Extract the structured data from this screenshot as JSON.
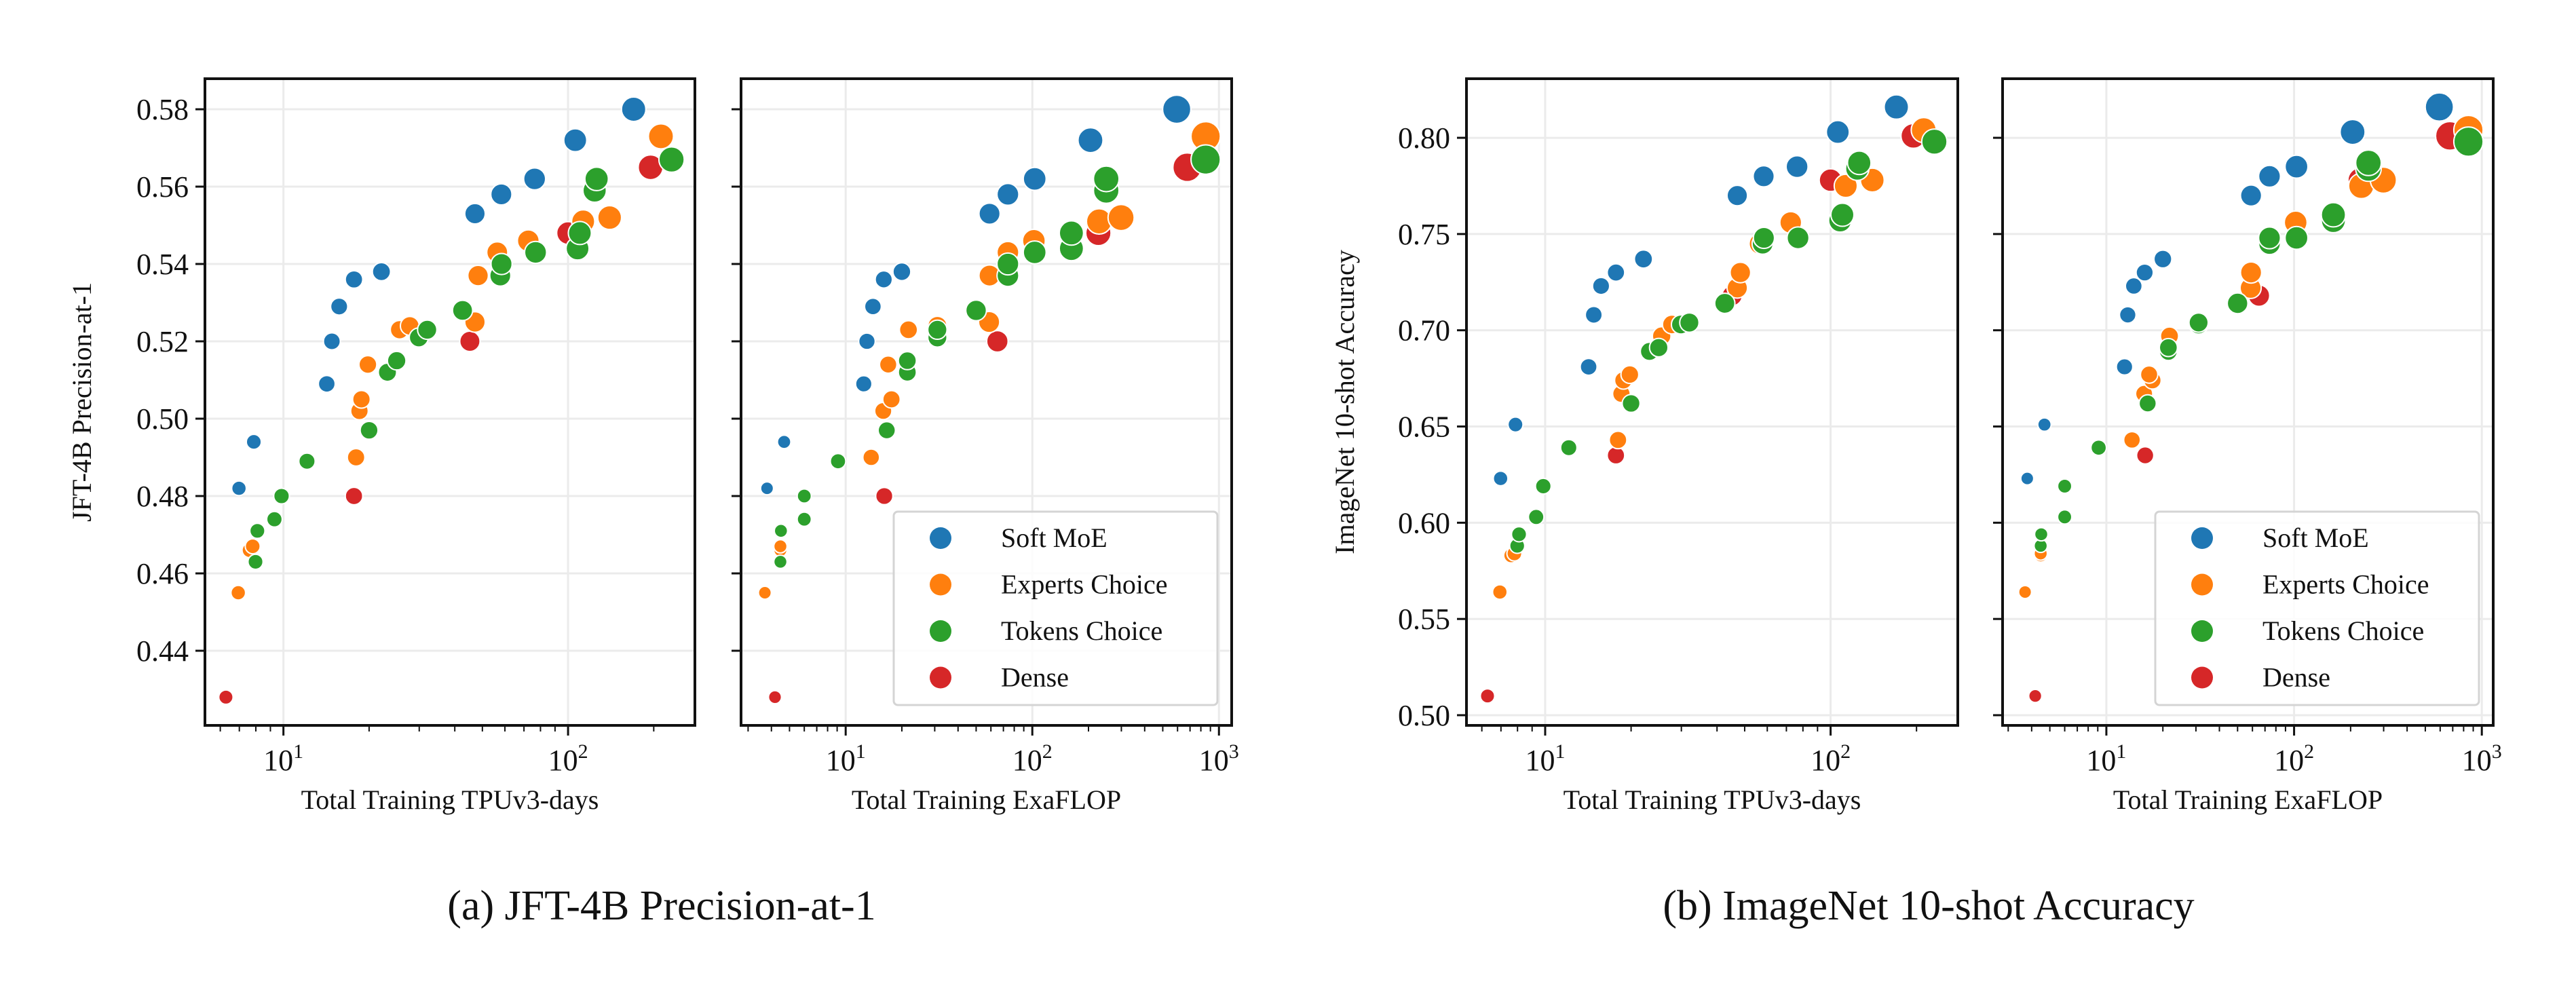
{
  "captions": {
    "a": "(a) JFT-4B Precision-at-1",
    "b": "(b) ImageNet 10-shot Accuracy"
  },
  "colors": {
    "Soft MoE": "#1f77b4",
    "Experts Choice": "#ff7f0e",
    "Tokens Choice": "#2ca02c",
    "Dense": "#d62728"
  },
  "chart_data": [
    {
      "type": "scatter",
      "xlabel": "Total Training TPUv3-days",
      "ylabel": "JFT-4B Precision-at-1",
      "xscale": "log",
      "xlim": [
        5.3,
        279
      ],
      "ylim": [
        0.4207,
        0.5879
      ],
      "xticks": [
        {
          "base": "10",
          "exp": "1",
          "value": 10
        },
        {
          "base": "10",
          "exp": "2",
          "value": 100
        }
      ],
      "yticks": [
        0.44,
        0.46,
        0.48,
        0.5,
        0.52,
        0.54,
        0.56,
        0.58
      ],
      "ytick_labels": [
        "0.44",
        "0.46",
        "0.48",
        "0.50",
        "0.52",
        "0.54",
        "0.56",
        "0.58"
      ],
      "grid": true,
      "legend": null,
      "series": [
        {
          "name": "Soft MoE",
          "x": [
            6.98,
            7.87,
            14.2,
            14.8,
            15.7,
            17.7,
            22.1,
            47.1,
            58.3,
            76.3,
            106,
            170
          ],
          "y": [
            0.482,
            0.494,
            0.509,
            0.52,
            0.529,
            0.536,
            0.538,
            0.553,
            0.558,
            0.562,
            0.572,
            0.58
          ]
        },
        {
          "name": "Experts Choice",
          "x": [
            6.94,
            7.6,
            7.8,
            18.0,
            18.5,
            18.8,
            19.8,
            25.6,
            27.8,
            47.1,
            48.3,
            56.4,
            72.5,
            113,
            140,
            212
          ],
          "y": [
            0.455,
            0.466,
            0.467,
            0.49,
            0.502,
            0.505,
            0.514,
            0.523,
            0.524,
            0.525,
            0.537,
            0.543,
            0.546,
            0.551,
            0.552,
            0.573
          ]
        },
        {
          "name": "Tokens Choice",
          "x": [
            7.98,
            8.1,
            9.3,
            9.85,
            12.1,
            20.0,
            23.2,
            25.0,
            29.9,
            32.0,
            42.6,
            57.8,
            58.4,
            76.9,
            108,
            110,
            124,
            126,
            231
          ],
          "y": [
            0.463,
            0.471,
            0.474,
            0.48,
            0.489,
            0.497,
            0.512,
            0.515,
            0.521,
            0.523,
            0.528,
            0.537,
            0.54,
            0.543,
            0.544,
            0.548,
            0.559,
            0.562,
            0.567
          ]
        },
        {
          "name": "Dense",
          "x": [
            6.28,
            17.7,
            45.2,
            100,
            195
          ],
          "y": [
            0.428,
            0.48,
            0.52,
            0.548,
            0.565
          ]
        }
      ]
    },
    {
      "type": "scatter",
      "xlabel": "Total Training ExaFLOP",
      "ylabel": "",
      "xscale": "log",
      "xlim": [
        2.75,
        1170
      ],
      "ylim": [
        0.4207,
        0.5879
      ],
      "xticks": [
        {
          "base": "10",
          "exp": "1",
          "value": 10
        },
        {
          "base": "10",
          "exp": "2",
          "value": 100
        },
        {
          "base": "10",
          "exp": "3",
          "value": 1000
        }
      ],
      "yticks": [
        0.44,
        0.46,
        0.48,
        0.5,
        0.52,
        0.54,
        0.56,
        0.58
      ],
      "grid": true,
      "legend": "lower-right",
      "series": [
        {
          "name": "Soft MoE",
          "x": [
            3.79,
            4.68,
            12.5,
            13.0,
            14.0,
            16.0,
            20.0,
            59,
            74,
            103,
            205,
            594
          ],
          "y": [
            0.482,
            0.494,
            0.509,
            0.52,
            0.529,
            0.536,
            0.538,
            0.553,
            0.558,
            0.562,
            0.572,
            0.58
          ]
        },
        {
          "name": "Experts Choice",
          "x": [
            3.69,
            4.47,
            4.47,
            13.7,
            15.9,
            17.6,
            16.9,
            21.7,
            31,
            58.7,
            59,
            74,
            102,
            228,
            299,
            849
          ],
          "y": [
            0.455,
            0.466,
            0.467,
            0.49,
            0.502,
            0.505,
            0.514,
            0.523,
            0.524,
            0.525,
            0.537,
            0.543,
            0.546,
            0.551,
            0.552,
            0.573
          ]
        },
        {
          "name": "Tokens Choice",
          "x": [
            4.47,
            4.5,
            6.0,
            6.0,
            9.1,
            16.6,
            21.4,
            21.4,
            31,
            31,
            50,
            74,
            74,
            103,
            162,
            162,
            249,
            249,
            849
          ],
          "y": [
            0.463,
            0.471,
            0.474,
            0.48,
            0.489,
            0.497,
            0.512,
            0.515,
            0.521,
            0.523,
            0.528,
            0.537,
            0.54,
            0.543,
            0.544,
            0.548,
            0.559,
            0.562,
            0.567
          ]
        },
        {
          "name": "Dense",
          "x": [
            4.18,
            16.1,
            65,
            226,
            676
          ],
          "y": [
            0.428,
            0.48,
            0.52,
            0.548,
            0.565
          ]
        }
      ]
    },
    {
      "type": "scatter",
      "xlabel": "Total Training TPUv3-days",
      "ylabel": "ImageNet 10-shot Accuracy",
      "xscale": "log",
      "xlim": [
        5.3,
        279
      ],
      "ylim": [
        0.4947,
        0.8307
      ],
      "xticks": [
        {
          "base": "10",
          "exp": "1",
          "value": 10
        },
        {
          "base": "10",
          "exp": "2",
          "value": 100
        }
      ],
      "yticks": [
        0.5,
        0.55,
        0.6,
        0.65,
        0.7,
        0.75,
        0.8
      ],
      "ytick_labels": [
        "0.50",
        "0.55",
        "0.60",
        "0.65",
        "0.70",
        "0.75",
        "0.80"
      ],
      "grid": true,
      "legend": null,
      "series": [
        {
          "name": "Soft MoE",
          "x": [
            6.98,
            7.87,
            14.2,
            14.8,
            15.7,
            17.7,
            22.1,
            47.1,
            58.3,
            76.3,
            106,
            170
          ],
          "y": [
            0.623,
            0.651,
            0.681,
            0.708,
            0.723,
            0.73,
            0.737,
            0.77,
            0.78,
            0.785,
            0.803,
            0.816
          ]
        },
        {
          "name": "Experts Choice",
          "x": [
            6.94,
            7.6,
            7.8,
            18.0,
            18.5,
            18.8,
            19.8,
            25.6,
            27.8,
            47.1,
            48.3,
            56.4,
            72.5,
            113,
            140,
            212
          ],
          "y": [
            0.564,
            0.583,
            0.584,
            0.643,
            0.667,
            0.674,
            0.677,
            0.697,
            0.703,
            0.722,
            0.73,
            0.745,
            0.756,
            0.775,
            0.778,
            0.804
          ]
        },
        {
          "name": "Tokens Choice",
          "x": [
            7.98,
            8.1,
            9.3,
            9.85,
            12.1,
            20.0,
            23.2,
            25.0,
            29.9,
            32.0,
            42.6,
            57.8,
            58.4,
            76.9,
            108,
            110,
            124,
            126,
            231
          ],
          "y": [
            0.588,
            0.594,
            0.603,
            0.619,
            0.639,
            0.662,
            0.689,
            0.691,
            0.703,
            0.704,
            0.714,
            0.745,
            0.748,
            0.748,
            0.757,
            0.76,
            0.784,
            0.787,
            0.798
          ]
        },
        {
          "name": "Dense",
          "x": [
            6.28,
            17.7,
            45.2,
            100,
            195
          ],
          "y": [
            0.51,
            0.635,
            0.718,
            0.778,
            0.801
          ]
        }
      ]
    },
    {
      "type": "scatter",
      "xlabel": "Total Training ExaFLOP",
      "ylabel": "",
      "xscale": "log",
      "xlim": [
        2.8,
        1150
      ],
      "ylim": [
        0.4947,
        0.8307
      ],
      "xticks": [
        {
          "base": "10",
          "exp": "1",
          "value": 10
        },
        {
          "base": "10",
          "exp": "2",
          "value": 100
        },
        {
          "base": "10",
          "exp": "3",
          "value": 1000
        }
      ],
      "yticks": [
        0.5,
        0.55,
        0.6,
        0.65,
        0.7,
        0.75,
        0.8
      ],
      "grid": true,
      "legend": "lower-right",
      "series": [
        {
          "name": "Soft MoE",
          "x": [
            3.79,
            4.68,
            12.5,
            13.0,
            14.0,
            16.0,
            20.0,
            59,
            74,
            103,
            205,
            594
          ],
          "y": [
            0.623,
            0.651,
            0.681,
            0.708,
            0.723,
            0.73,
            0.737,
            0.77,
            0.78,
            0.785,
            0.803,
            0.816
          ]
        },
        {
          "name": "Experts Choice",
          "x": [
            3.69,
            4.47,
            4.47,
            13.7,
            15.9,
            17.6,
            16.9,
            21.7,
            31,
            58.7,
            59,
            74,
            102,
            228,
            299,
            849
          ],
          "y": [
            0.564,
            0.583,
            0.584,
            0.643,
            0.667,
            0.674,
            0.677,
            0.697,
            0.703,
            0.722,
            0.73,
            0.745,
            0.756,
            0.775,
            0.778,
            0.804
          ]
        },
        {
          "name": "Tokens Choice",
          "x": [
            4.47,
            4.5,
            6.0,
            6.0,
            9.1,
            16.6,
            21.4,
            21.4,
            31,
            31,
            50,
            74,
            74,
            103,
            162,
            162,
            249,
            249,
            849
          ],
          "y": [
            0.588,
            0.594,
            0.603,
            0.619,
            0.639,
            0.662,
            0.689,
            0.691,
            0.703,
            0.704,
            0.714,
            0.745,
            0.748,
            0.748,
            0.757,
            0.76,
            0.784,
            0.787,
            0.798
          ]
        },
        {
          "name": "Dense",
          "x": [
            4.18,
            16.1,
            65,
            226,
            676
          ],
          "y": [
            0.51,
            0.635,
            0.718,
            0.778,
            0.801
          ]
        }
      ]
    }
  ]
}
